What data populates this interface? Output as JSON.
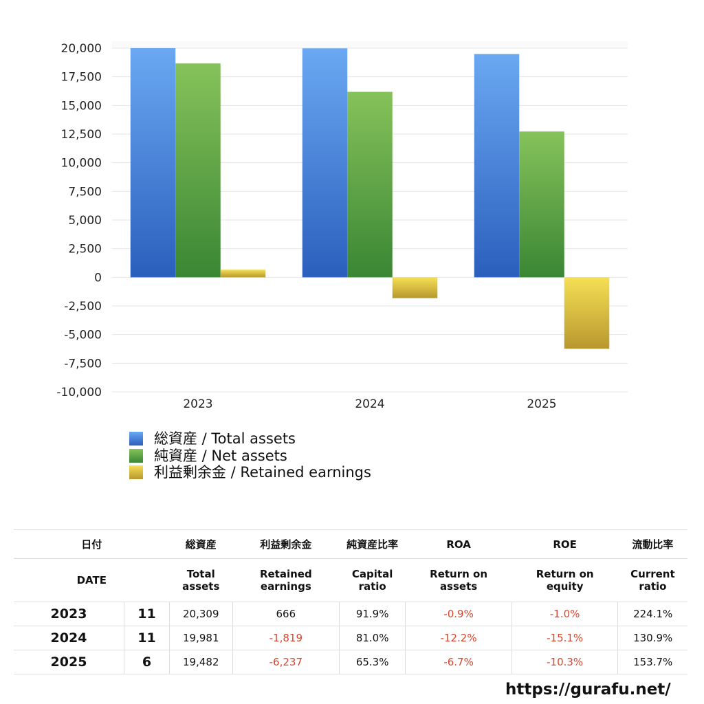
{
  "chart_data": {
    "type": "bar",
    "categories": [
      "2023",
      "2024",
      "2025"
    ],
    "series": [
      {
        "name": "総資産 / Total assets",
        "values": [
          20309,
          19981,
          19482
        ],
        "colors": [
          "#6aa8f2",
          "#2b5fbd"
        ]
      },
      {
        "name": "純資産 / Net assets",
        "values": [
          18664,
          16185,
          12722
        ],
        "colors": [
          "#86c25a",
          "#3a8634"
        ]
      },
      {
        "name": "利益剰余金 / Retained earnings",
        "values": [
          666,
          -1819,
          -6237
        ],
        "colors": [
          "#f5df55",
          "#b8982e"
        ]
      }
    ],
    "ylim": [
      -10000,
      20000
    ],
    "yticks": [
      20000,
      17500,
      15000,
      12500,
      10000,
      7500,
      5000,
      2500,
      0,
      -2500,
      -5000,
      -7500,
      -10000
    ],
    "ytick_labels": [
      "20,000",
      "17,500",
      "15,000",
      "12,500",
      "10,000",
      "7,500",
      "5,000",
      "2,500",
      "0",
      "-2,500",
      "-5,000",
      "-7,500",
      "-10,000"
    ],
    "grid": true,
    "legend": "bottom-left"
  },
  "table": {
    "header_jp": [
      "日付",
      "総資産",
      "利益剰余金",
      "純資産比率",
      "ROA",
      "ROE",
      "流動比率"
    ],
    "header_en": [
      "DATE",
      "Total assets",
      "Retained earnings",
      "Capital ratio",
      "Return on assets",
      "Return on equity",
      "Current ratio"
    ],
    "rows": [
      {
        "year": "2023",
        "month": "11",
        "cells": [
          "20,309",
          "666",
          "91.9%",
          "-0.9%",
          "-1.0%",
          "224.1%"
        ]
      },
      {
        "year": "2024",
        "month": "11",
        "cells": [
          "19,981",
          "-1,819",
          "81.0%",
          "-12.2%",
          "-15.1%",
          "130.9%"
        ]
      },
      {
        "year": "2025",
        "month": "6",
        "cells": [
          "19,482",
          "-6,237",
          "65.3%",
          "-6.7%",
          "-10.3%",
          "153.7%"
        ]
      }
    ]
  },
  "footer": {
    "url": "https://gurafu.net/"
  }
}
